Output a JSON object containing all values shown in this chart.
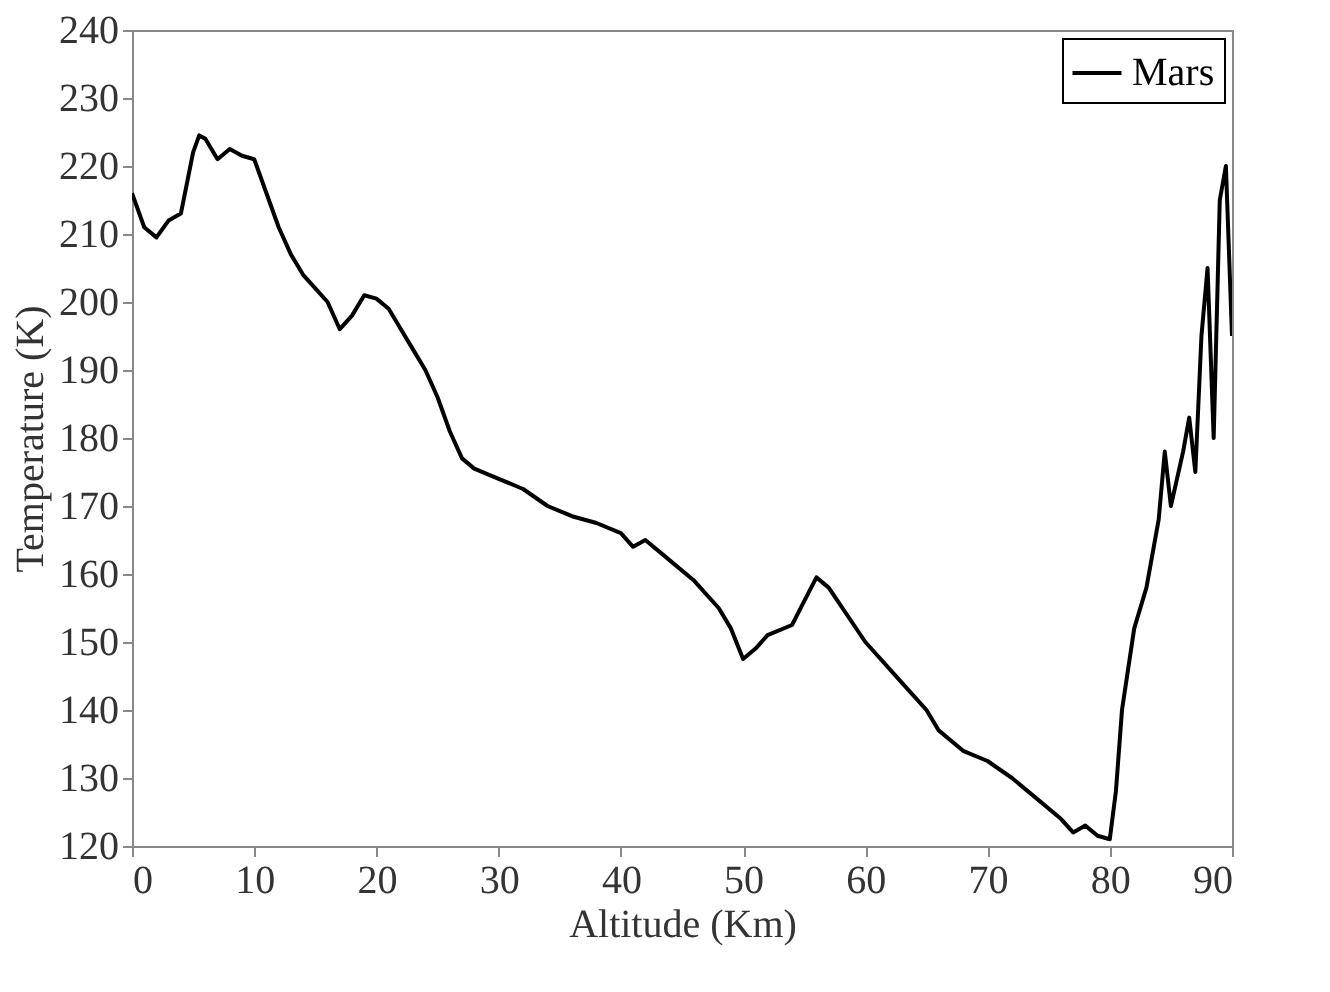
{
  "chart_data": {
    "type": "line",
    "xlabel": "Altitude (Km)",
    "ylabel": "Temperature (K)",
    "xlim": [
      0,
      90
    ],
    "xticks": [
      0,
      10,
      20,
      30,
      40,
      50,
      60,
      70,
      80,
      90
    ],
    "ylim": [
      120,
      240
    ],
    "yticks": [
      120,
      130,
      140,
      150,
      160,
      170,
      180,
      190,
      200,
      210,
      220,
      230,
      240
    ],
    "grid": false,
    "legend": "top right",
    "marker": "none",
    "line_style": "solid",
    "series": [
      {
        "name": "Mars",
        "color": "#000000",
        "x": [
          0,
          1,
          2,
          3,
          4,
          5,
          5.5,
          6,
          7,
          8,
          9,
          10,
          11,
          12,
          13,
          14,
          15,
          16,
          17,
          18,
          19,
          20,
          21,
          22,
          23,
          24,
          25,
          26,
          27,
          28,
          30,
          32,
          34,
          36,
          38,
          40,
          41,
          42,
          44,
          46,
          48,
          49,
          50,
          51,
          52,
          54,
          55,
          56,
          57,
          60,
          63,
          65,
          66,
          68,
          70,
          72,
          74,
          76,
          77,
          78,
          79,
          80,
          80.5,
          81,
          82,
          83,
          84,
          84.5,
          85,
          86,
          86.5,
          87,
          87.5,
          88,
          88.5,
          89,
          89.5,
          90
        ],
        "values": [
          216,
          211,
          209.5,
          212,
          213,
          222,
          224.5,
          224,
          221,
          222.5,
          221.5,
          221,
          216,
          211,
          207,
          204,
          202,
          200,
          196,
          198,
          201,
          200.5,
          199,
          196,
          193,
          190,
          186,
          181,
          177,
          175.5,
          174,
          172.5,
          170,
          168.5,
          167.5,
          166,
          164,
          165,
          162,
          159,
          155,
          152,
          147.5,
          149,
          151,
          152.5,
          156,
          159.5,
          158,
          150,
          144,
          140,
          137,
          134,
          132.5,
          130,
          127,
          124,
          122,
          123,
          121.5,
          121,
          128,
          140,
          152,
          158,
          168,
          178,
          170,
          178,
          183,
          175,
          195,
          205,
          180,
          215,
          220,
          195
        ]
      }
    ]
  }
}
